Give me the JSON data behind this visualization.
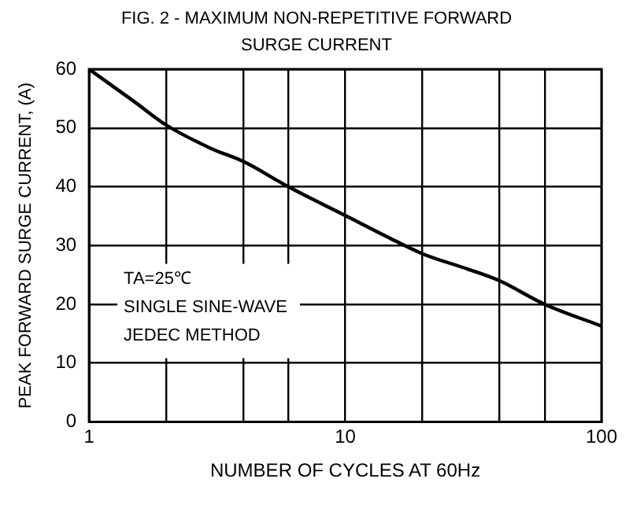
{
  "chart_data": {
    "type": "line",
    "title": "FIG. 2 - MAXIMUM NON-REPETITIVE FORWARD SURGE CURRENT",
    "xlabel": "NUMBER OF CYCLES AT 60Hz",
    "ylabel": "PEAK FORWARD SURGE CURRENT, (A)",
    "x": [
      1,
      1.5,
      2,
      3,
      4,
      6,
      10,
      15,
      20,
      30,
      40,
      60,
      100
    ],
    "series": [
      {
        "color": "#000000",
        "values": [
          60,
          54.5,
          50.5,
          46.5,
          44.3,
          40,
          35.1,
          31.2,
          28.6,
          26,
          24,
          20,
          16.3
        ]
      }
    ],
    "log": "x",
    "xlim": [
      1,
      100
    ],
    "xticks": [
      1,
      {
        "value": 2,
        "label": null
      },
      {
        "value": 4,
        "label": null
      },
      {
        "value": 6,
        "label": null
      },
      10,
      {
        "value": 20,
        "label": null
      },
      {
        "value": 40,
        "label": null
      },
      {
        "value": 60,
        "label": null
      },
      100
    ],
    "ylim": [
      0,
      60
    ],
    "yticks": [
      0,
      10,
      20,
      30,
      40,
      50,
      60
    ],
    "grid": true,
    "legend": false,
    "marker": "none",
    "line_style": "solid",
    "annotations": [
      "TA=25℃",
      "SINGLE SINE-WAVE",
      "JEDEC METHOD"
    ]
  }
}
